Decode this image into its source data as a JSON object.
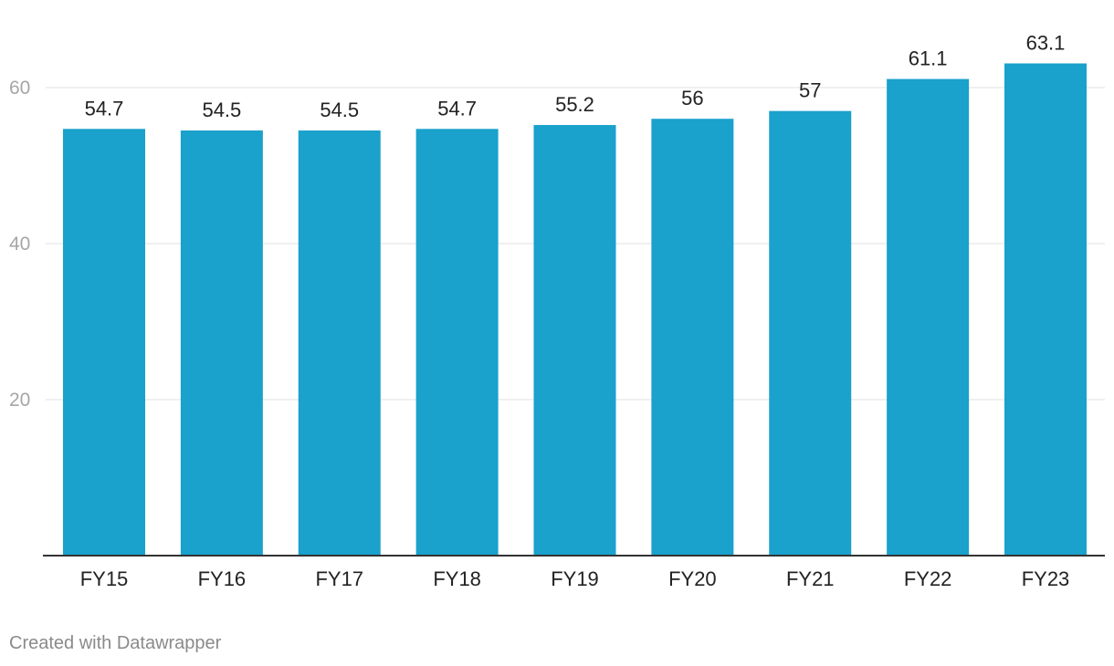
{
  "chart_data": {
    "type": "bar",
    "categories": [
      "FY15",
      "FY16",
      "FY17",
      "FY18",
      "FY19",
      "FY20",
      "FY21",
      "FY22",
      "FY23"
    ],
    "values": [
      54.7,
      54.5,
      54.5,
      54.7,
      55.2,
      56,
      57,
      61.1,
      63.1
    ],
    "value_labels": [
      "54.7",
      "54.5",
      "54.5",
      "54.7",
      "55.2",
      "56",
      "57",
      "61.1",
      "63.1"
    ],
    "ylim": [
      0,
      70
    ],
    "yticks": [
      20,
      40,
      60
    ],
    "grid": true,
    "bar_color": "#1aa1cc"
  },
  "footer": {
    "credit": "Created with Datawrapper"
  }
}
